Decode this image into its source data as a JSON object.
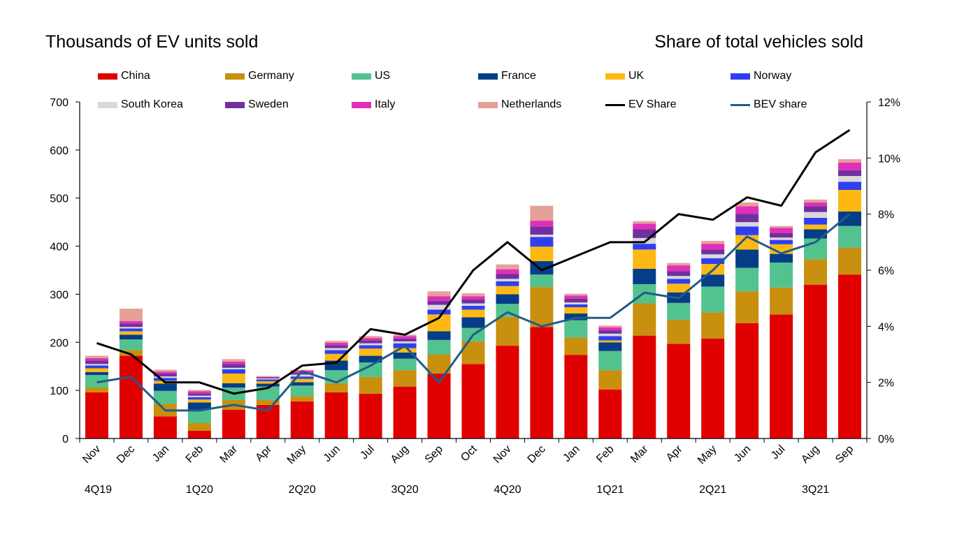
{
  "chart_data": {
    "type": "bar",
    "stacked": true,
    "title_left": "Thousands of EV units sold",
    "title_right": "Share of total vehicles sold",
    "categories": [
      "Nov",
      "Dec",
      "Jan",
      "Feb",
      "Mar",
      "Apr",
      "May",
      "Jun",
      "Jul",
      "Aug",
      "Sep",
      "Oct",
      "Nov",
      "Dec",
      "Jan",
      "Feb",
      "Mar",
      "Apr",
      "May",
      "Jun",
      "Jul",
      "Aug",
      "Sep"
    ],
    "quarters": [
      {
        "label": "4Q19",
        "start": 0,
        "end": 1
      },
      {
        "label": "1Q20",
        "start": 2,
        "end": 4
      },
      {
        "label": "2Q20",
        "start": 5,
        "end": 7
      },
      {
        "label": "3Q20",
        "start": 8,
        "end": 10
      },
      {
        "label": "4Q20",
        "start": 11,
        "end": 13
      },
      {
        "label": "1Q21",
        "start": 14,
        "end": 16
      },
      {
        "label": "2Q21",
        "start": 17,
        "end": 19
      },
      {
        "label": "3Q21",
        "start": 20,
        "end": 22
      }
    ],
    "y_left": {
      "min": 0,
      "max": 700,
      "step": 100
    },
    "y_right": {
      "min": 0,
      "max": 0.12,
      "step": 0.02,
      "format": "percent"
    },
    "series": [
      {
        "name": "China",
        "color": "#e00000",
        "values": [
          96,
          172,
          46,
          16,
          60,
          70,
          77,
          96,
          93,
          108,
          135,
          155,
          193,
          232,
          174,
          102,
          214,
          197,
          208,
          240,
          258,
          320,
          341
        ]
      },
      {
        "name": "Germany",
        "color": "#c8900e",
        "values": [
          10,
          12,
          26,
          16,
          20,
          10,
          11,
          19,
          35,
          34,
          40,
          47,
          60,
          83,
          36,
          40,
          67,
          50,
          54,
          66,
          56,
          53,
          56
        ]
      },
      {
        "name": "US",
        "color": "#52c28e",
        "values": [
          26,
          22,
          27,
          28,
          26,
          28,
          22,
          27,
          30,
          24,
          30,
          28,
          27,
          26,
          36,
          40,
          40,
          35,
          54,
          49,
          52,
          43,
          45
        ]
      },
      {
        "name": "France",
        "color": "#053e86",
        "values": [
          6,
          10,
          15,
          15,
          9,
          6,
          7,
          20,
          14,
          13,
          18,
          22,
          20,
          28,
          14,
          18,
          32,
          22,
          25,
          38,
          18,
          19,
          30
        ]
      },
      {
        "name": "UK",
        "color": "#fdb912",
        "values": [
          8,
          7,
          6,
          6,
          20,
          5,
          7,
          14,
          15,
          9,
          35,
          16,
          17,
          30,
          13,
          4,
          40,
          18,
          22,
          30,
          20,
          10,
          45
        ]
      },
      {
        "name": "Norway",
        "color": "#2f3ff0",
        "values": [
          6,
          6,
          6,
          5,
          9,
          4,
          5,
          8,
          7,
          10,
          10,
          8,
          10,
          20,
          6,
          9,
          12,
          10,
          12,
          18,
          9,
          14,
          17
        ]
      },
      {
        "name": "South Korea",
        "color": "#d9d9d9",
        "values": [
          3,
          3,
          3,
          3,
          3,
          2,
          4,
          4,
          4,
          4,
          10,
          5,
          5,
          5,
          4,
          5,
          12,
          6,
          8,
          9,
          5,
          12,
          12
        ]
      },
      {
        "name": "Sweden",
        "color": "#7030a0",
        "values": [
          7,
          7,
          6,
          5,
          8,
          2,
          4,
          6,
          6,
          6,
          8,
          8,
          10,
          17,
          8,
          7,
          18,
          10,
          10,
          17,
          9,
          12,
          12
        ]
      },
      {
        "name": "Italy",
        "color": "#e030b8",
        "values": [
          5,
          5,
          4,
          4,
          5,
          1,
          4,
          5,
          5,
          5,
          10,
          7,
          10,
          12,
          6,
          6,
          12,
          12,
          12,
          16,
          11,
          8,
          16
        ]
      },
      {
        "name": "Netherlands",
        "color": "#e6a098",
        "values": [
          5,
          26,
          4,
          3,
          5,
          2,
          2,
          4,
          4,
          3,
          10,
          6,
          10,
          31,
          4,
          4,
          5,
          5,
          6,
          8,
          4,
          6,
          7
        ]
      }
    ],
    "lines": [
      {
        "name": "EV Share",
        "color": "#000000",
        "axis": "right",
        "values": [
          0.034,
          0.03,
          0.02,
          0.02,
          0.016,
          0.018,
          0.026,
          0.027,
          0.039,
          0.037,
          0.043,
          0.06,
          0.07,
          0.06,
          0.065,
          0.07,
          0.07,
          0.08,
          0.078,
          0.086,
          0.083,
          0.102,
          0.11
        ]
      },
      {
        "name": "BEV share",
        "color": "#1f5c8b",
        "axis": "right",
        "values": [
          0.02,
          0.022,
          0.01,
          0.01,
          0.012,
          0.01,
          0.024,
          0.02,
          0.026,
          0.033,
          0.02,
          0.037,
          0.045,
          0.04,
          0.043,
          0.043,
          0.052,
          0.05,
          0.06,
          0.072,
          0.066,
          0.07,
          0.08
        ]
      }
    ],
    "legend_placement": "top",
    "grid": false
  }
}
